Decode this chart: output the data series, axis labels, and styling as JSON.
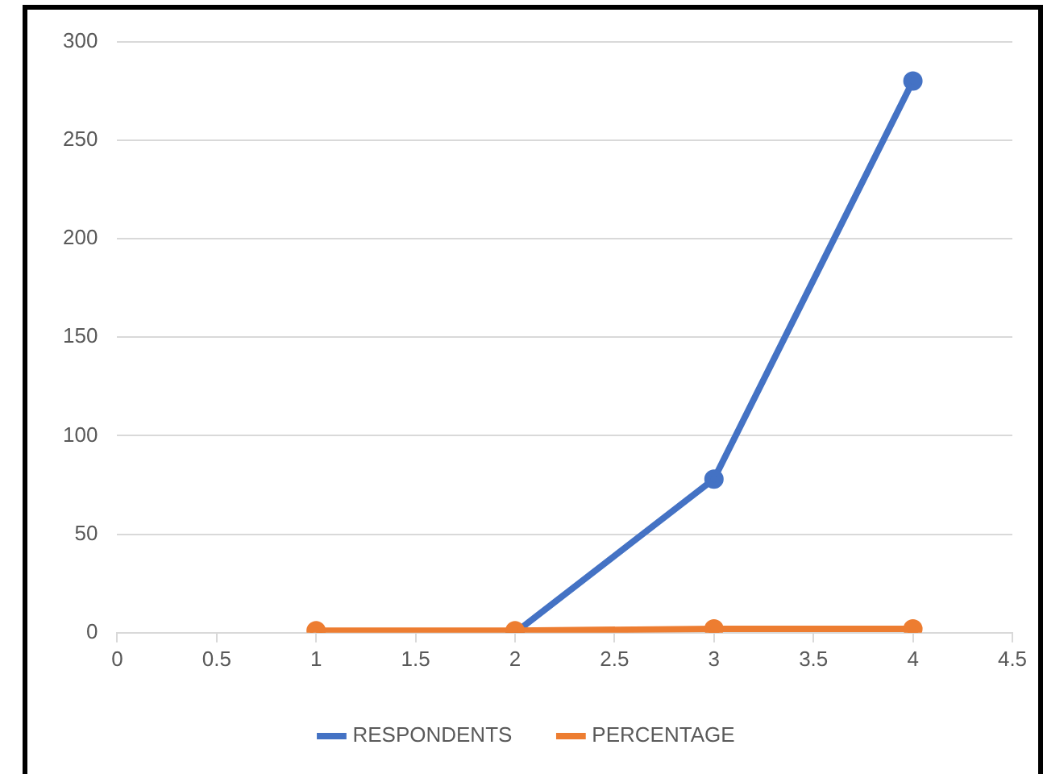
{
  "chart_data": {
    "type": "line",
    "xlim": [
      0,
      4.5
    ],
    "xticks": [
      0,
      0.5,
      1,
      1.5,
      2,
      2.5,
      3,
      3.5,
      4,
      4.5
    ],
    "ylim": [
      0,
      300
    ],
    "yticks": [
      0,
      50,
      100,
      150,
      200,
      250,
      300
    ],
    "grid": "y",
    "legend": "bottom",
    "marker": "circle",
    "line_style": "solid",
    "series": [
      {
        "name": "RESPONDENTS",
        "color": "#4472c4",
        "x": [
          2,
          3,
          4
        ],
        "values": [
          0,
          78,
          280
        ]
      },
      {
        "name": "PERCENTAGE",
        "color": "#ed7d31",
        "x": [
          1,
          2,
          3,
          4
        ],
        "values": [
          1,
          1,
          2,
          2
        ]
      }
    ]
  }
}
